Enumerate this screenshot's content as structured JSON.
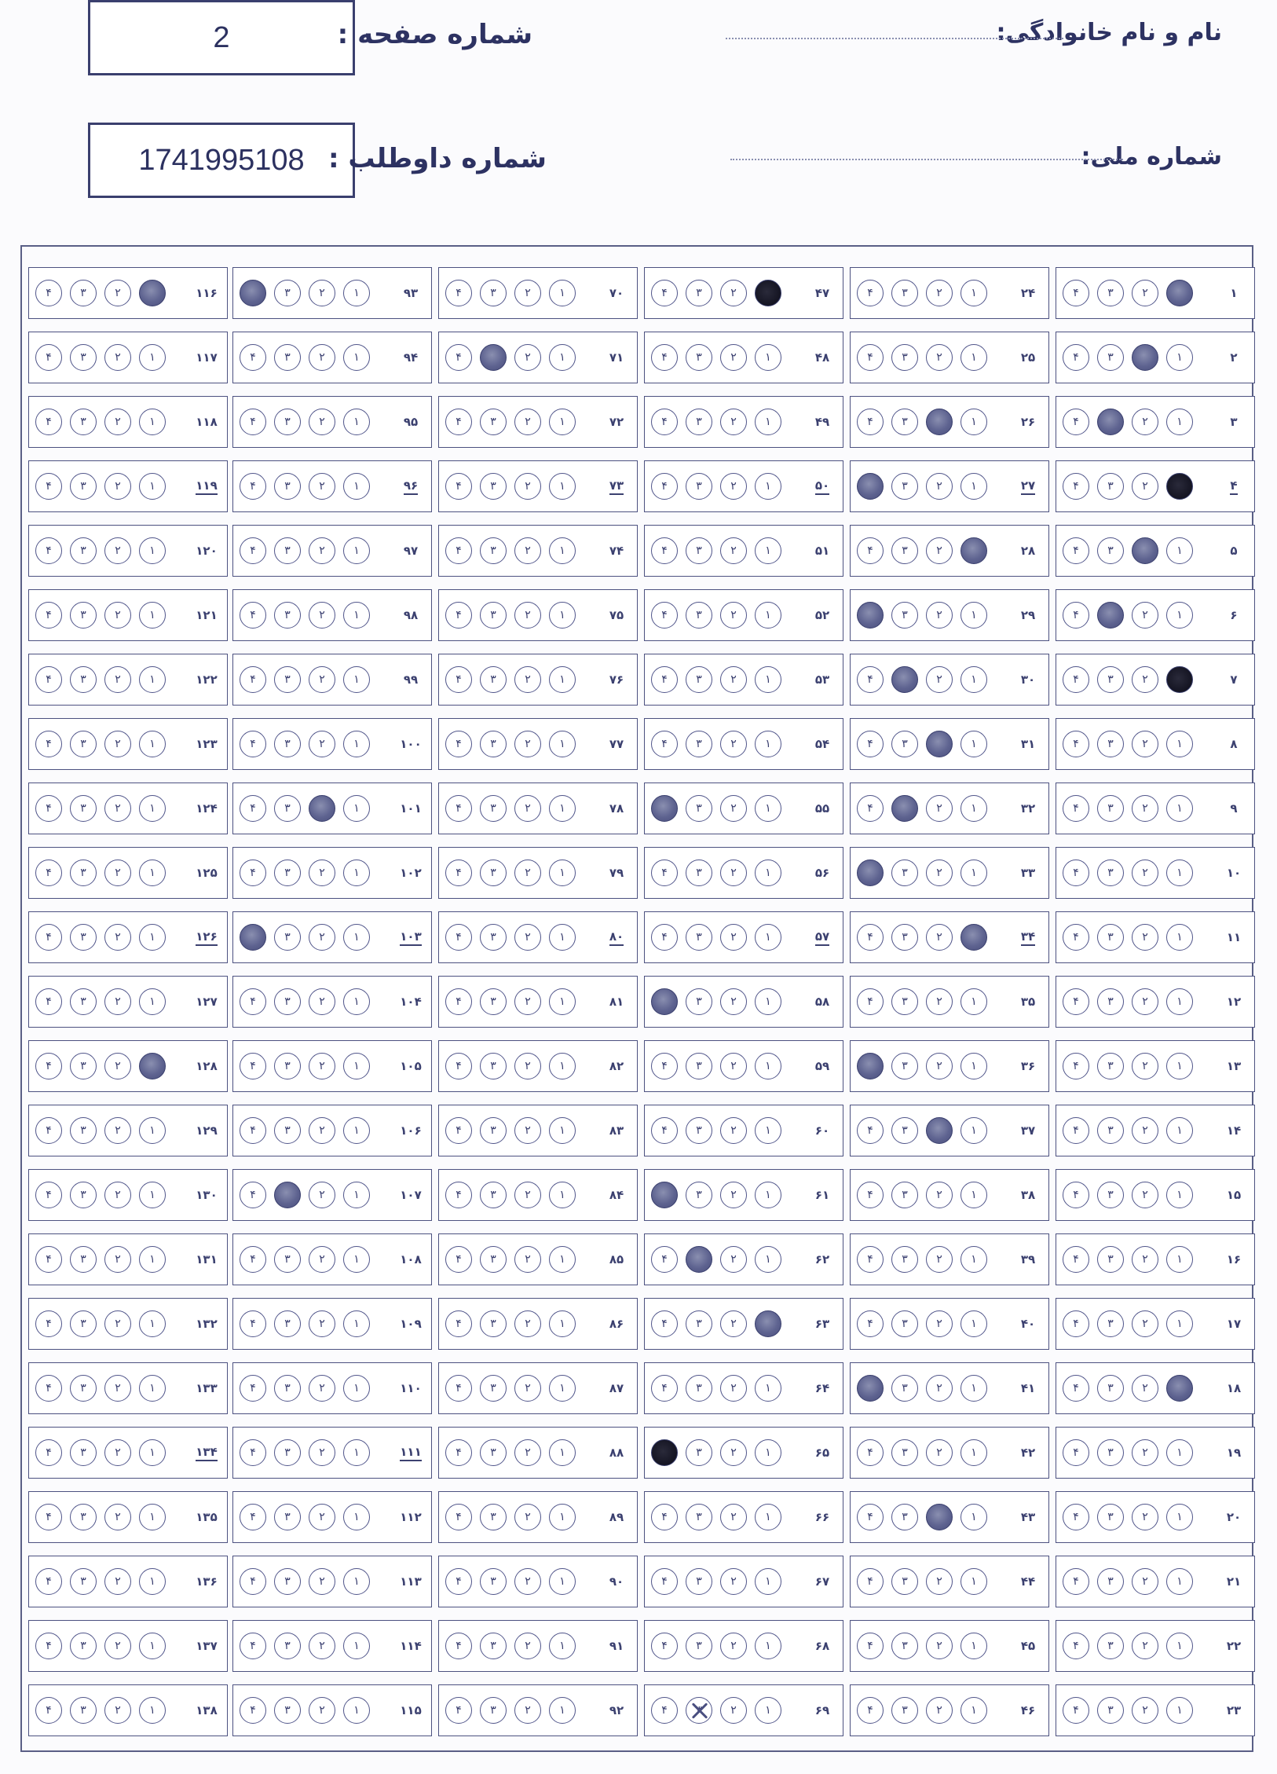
{
  "header": {
    "page_label": "شماره صفحه :",
    "page_value": "2",
    "candidate_label": "شماره داوطلب :",
    "candidate_value": "1741995108",
    "name_label": "نام و نام خانوادگی:",
    "national_id_label": "شماره ملی:"
  },
  "options": [
    "۱",
    "۲",
    "۳",
    "۴"
  ],
  "colors": {
    "ink": "#2f3566",
    "fill": "#5e6390"
  },
  "questions": [
    {
      "n": "۱",
      "sel": "1"
    },
    {
      "n": "۲",
      "sel": "2"
    },
    {
      "n": "۳",
      "sel": "3"
    },
    {
      "n": "۴",
      "sel": "1d",
      "ul": true
    },
    {
      "n": "۵",
      "sel": "2"
    },
    {
      "n": "۶",
      "sel": "3"
    },
    {
      "n": "۷",
      "sel": "1d"
    },
    {
      "n": "۸"
    },
    {
      "n": "۹"
    },
    {
      "n": "۱۰"
    },
    {
      "n": "۱۱"
    },
    {
      "n": "۱۲"
    },
    {
      "n": "۱۳"
    },
    {
      "n": "۱۴"
    },
    {
      "n": "۱۵"
    },
    {
      "n": "۱۶"
    },
    {
      "n": "۱۷"
    },
    {
      "n": "۱۸",
      "sel": "1"
    },
    {
      "n": "۱۹"
    },
    {
      "n": "۲۰"
    },
    {
      "n": "۲۱"
    },
    {
      "n": "۲۲"
    },
    {
      "n": "۲۳"
    },
    {
      "n": "۲۴"
    },
    {
      "n": "۲۵"
    },
    {
      "n": "۲۶",
      "sel": "2"
    },
    {
      "n": "۲۷",
      "sel": "4",
      "ul": true
    },
    {
      "n": "۲۸",
      "sel": "1"
    },
    {
      "n": "۲۹",
      "sel": "4"
    },
    {
      "n": "۳۰",
      "sel": "3"
    },
    {
      "n": "۳۱",
      "sel": "2"
    },
    {
      "n": "۳۲",
      "sel": "3"
    },
    {
      "n": "۳۳",
      "sel": "4"
    },
    {
      "n": "۳۴",
      "sel": "1",
      "ul": true
    },
    {
      "n": "۳۵"
    },
    {
      "n": "۳۶",
      "sel": "4"
    },
    {
      "n": "۳۷",
      "sel": "2"
    },
    {
      "n": "۳۸"
    },
    {
      "n": "۳۹"
    },
    {
      "n": "۴۰"
    },
    {
      "n": "۴۱",
      "sel": "4"
    },
    {
      "n": "۴۲"
    },
    {
      "n": "۴۳",
      "sel": "2"
    },
    {
      "n": "۴۴"
    },
    {
      "n": "۴۵"
    },
    {
      "n": "۴۶"
    },
    {
      "n": "۴۷",
      "sel": "1d"
    },
    {
      "n": "۴۸"
    },
    {
      "n": "۴۹"
    },
    {
      "n": "۵۰",
      "ul": true
    },
    {
      "n": "۵۱"
    },
    {
      "n": "۵۲"
    },
    {
      "n": "۵۳"
    },
    {
      "n": "۵۴"
    },
    {
      "n": "۵۵",
      "sel": "4"
    },
    {
      "n": "۵۶"
    },
    {
      "n": "۵۷",
      "ul": true
    },
    {
      "n": "۵۸",
      "sel": "4"
    },
    {
      "n": "۵۹"
    },
    {
      "n": "۶۰"
    },
    {
      "n": "۶۱",
      "sel": "4"
    },
    {
      "n": "۶۲",
      "sel": "3"
    },
    {
      "n": "۶۳",
      "sel": "1"
    },
    {
      "n": "۶۴"
    },
    {
      "n": "۶۵",
      "sel": "4d"
    },
    {
      "n": "۶۶"
    },
    {
      "n": "۶۷"
    },
    {
      "n": "۶۸"
    },
    {
      "n": "۶۹",
      "sel": "3x"
    },
    {
      "n": "۷۰"
    },
    {
      "n": "۷۱",
      "sel": "3"
    },
    {
      "n": "۷۲"
    },
    {
      "n": "۷۳",
      "ul": true
    },
    {
      "n": "۷۴"
    },
    {
      "n": "۷۵"
    },
    {
      "n": "۷۶"
    },
    {
      "n": "۷۷"
    },
    {
      "n": "۷۸"
    },
    {
      "n": "۷۹"
    },
    {
      "n": "۸۰",
      "ul": true
    },
    {
      "n": "۸۱"
    },
    {
      "n": "۸۲"
    },
    {
      "n": "۸۳"
    },
    {
      "n": "۸۴"
    },
    {
      "n": "۸۵"
    },
    {
      "n": "۸۶"
    },
    {
      "n": "۸۷"
    },
    {
      "n": "۸۸"
    },
    {
      "n": "۸۹"
    },
    {
      "n": "۹۰"
    },
    {
      "n": "۹۱"
    },
    {
      "n": "۹۲"
    },
    {
      "n": "۹۳",
      "sel": "4"
    },
    {
      "n": "۹۴"
    },
    {
      "n": "۹۵"
    },
    {
      "n": "۹۶",
      "ul": true
    },
    {
      "n": "۹۷"
    },
    {
      "n": "۹۸"
    },
    {
      "n": "۹۹"
    },
    {
      "n": "۱۰۰"
    },
    {
      "n": "۱۰۱",
      "sel": "2"
    },
    {
      "n": "۱۰۲"
    },
    {
      "n": "۱۰۳",
      "sel": "4",
      "ul": true
    },
    {
      "n": "۱۰۴"
    },
    {
      "n": "۱۰۵"
    },
    {
      "n": "۱۰۶"
    },
    {
      "n": "۱۰۷",
      "sel": "3"
    },
    {
      "n": "۱۰۸"
    },
    {
      "n": "۱۰۹"
    },
    {
      "n": "۱۱۰"
    },
    {
      "n": "۱۱۱",
      "ul": true
    },
    {
      "n": "۱۱۲"
    },
    {
      "n": "۱۱۳"
    },
    {
      "n": "۱۱۴"
    },
    {
      "n": "۱۱۵"
    },
    {
      "n": "۱۱۶",
      "sel": "1"
    },
    {
      "n": "۱۱۷"
    },
    {
      "n": "۱۱۸"
    },
    {
      "n": "۱۱۹",
      "ul": true
    },
    {
      "n": "۱۲۰"
    },
    {
      "n": "۱۲۱"
    },
    {
      "n": "۱۲۲"
    },
    {
      "n": "۱۲۳"
    },
    {
      "n": "۱۲۴"
    },
    {
      "n": "۱۲۵"
    },
    {
      "n": "۱۲۶",
      "ul": true
    },
    {
      "n": "۱۲۷"
    },
    {
      "n": "۱۲۸",
      "sel": "1"
    },
    {
      "n": "۱۲۹"
    },
    {
      "n": "۱۳۰"
    },
    {
      "n": "۱۳۱"
    },
    {
      "n": "۱۳۲"
    },
    {
      "n": "۱۳۳"
    },
    {
      "n": "۱۳۴",
      "ul": true
    },
    {
      "n": "۱۳۵"
    },
    {
      "n": "۱۳۶"
    },
    {
      "n": "۱۳۷"
    },
    {
      "n": "۱۳۸"
    }
  ]
}
